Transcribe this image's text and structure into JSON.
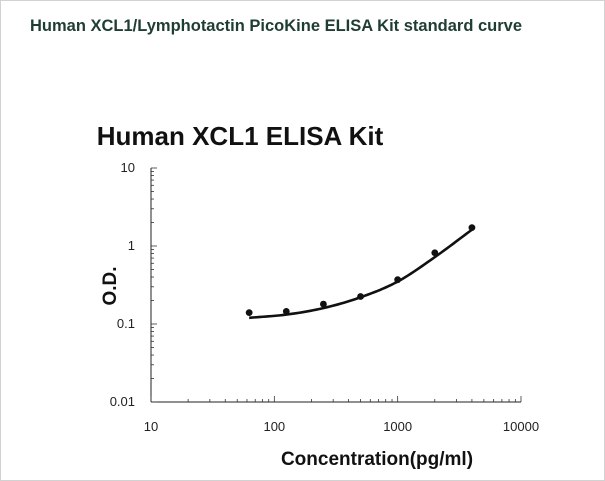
{
  "page": {
    "header": "Human XCL1/Lymphotactin PicoKine ELISA Kit standard curve"
  },
  "chart_data": {
    "type": "scatter",
    "title": "Human XCL1 ELISA Kit",
    "xlabel": "Concentration(pg/ml)",
    "ylabel": "O.D.",
    "xscale": "log",
    "yscale": "log",
    "xlim": [
      10,
      10000
    ],
    "ylim": [
      0.01,
      10
    ],
    "xticks": [
      "10",
      "100",
      "1000",
      "10000"
    ],
    "yticks": [
      "0.01",
      "0.1",
      "1",
      "10"
    ],
    "grid": false,
    "series": [
      {
        "type": "scatter",
        "x": [
          62.5,
          125,
          250,
          500,
          1000,
          2000,
          4000
        ],
        "y": [
          0.14,
          0.145,
          0.18,
          0.225,
          0.37,
          0.82,
          1.72
        ]
      },
      {
        "type": "line",
        "x": [
          62.5,
          125,
          250,
          500,
          1000,
          2000,
          4000
        ],
        "y": [
          0.12,
          0.132,
          0.16,
          0.22,
          0.35,
          0.72,
          1.62
        ]
      }
    ],
    "colors": {
      "points": "#111111",
      "curve": "#111111",
      "header": "#1f3d33"
    }
  }
}
